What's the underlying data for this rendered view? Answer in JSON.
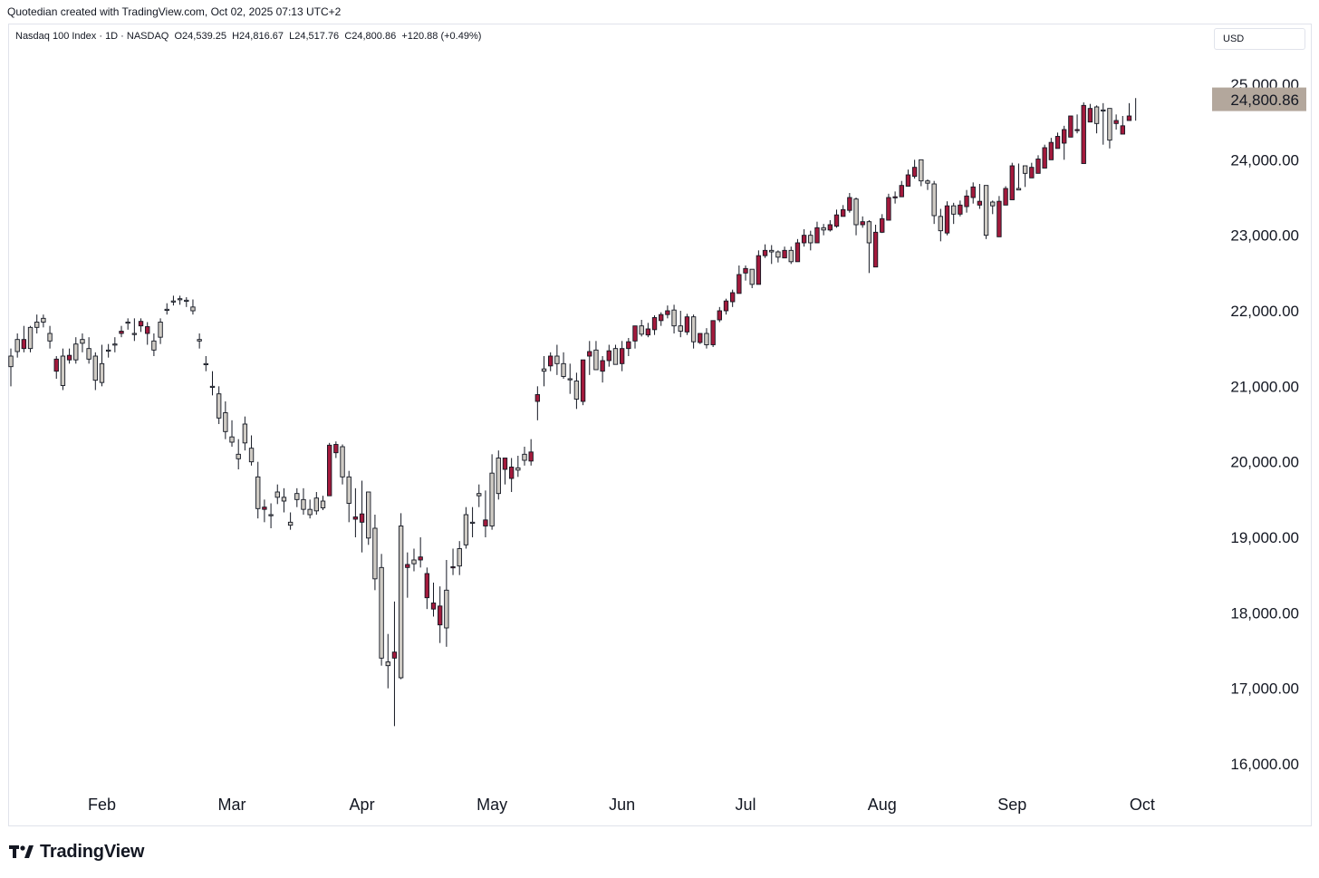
{
  "header": {
    "caption": "Quotedian created with TradingView.com, Oct 02, 2025 07:13 UTC+2"
  },
  "legend": {
    "symbol": "Nasdaq 100 Index · 1D · NASDAQ",
    "open": "O24,539.25",
    "high": "H24,816.67",
    "low": "L24,517.76",
    "close": "C24,800.86",
    "change": "+120.88 (+0.49%)"
  },
  "currency": "USD",
  "last_price_label": "24,800.86",
  "branding": {
    "logo_text": "TradingView"
  },
  "colors": {
    "up_fill": "#cfcbc4",
    "down_fill": "#a31a3c",
    "price_tag": "#b3a79c",
    "wick": "#131722"
  },
  "chart_data": {
    "type": "candlestick",
    "title": "Nasdaq 100 Index · 1D · NASDAQ",
    "xlabel": "",
    "ylabel": "",
    "ylim": [
      15800,
      25200
    ],
    "y_ticks": [
      {
        "value": 16000,
        "label": "16,000.00"
      },
      {
        "value": 17000,
        "label": "17,000.00"
      },
      {
        "value": 18000,
        "label": "18,000.00"
      },
      {
        "value": 19000,
        "label": "19,000.00"
      },
      {
        "value": 20000,
        "label": "20,000.00"
      },
      {
        "value": 21000,
        "label": "21,000.00"
      },
      {
        "value": 22000,
        "label": "22,000.00"
      },
      {
        "value": 23000,
        "label": "23,000.00"
      },
      {
        "value": 24000,
        "label": "24,000.00"
      },
      {
        "value": 25000,
        "label": "25,000.00"
      }
    ],
    "x_ticks": [
      "Feb",
      "Mar",
      "Apr",
      "May",
      "Jun",
      "Jul",
      "Aug",
      "Sep",
      "Oct"
    ],
    "x_tick_bar_index": [
      14,
      34,
      54,
      74,
      94,
      113,
      134,
      154,
      174
    ],
    "last_price": 24800.86,
    "closes": [
      21400,
      21620,
      21500,
      21780,
      21850,
      21900,
      21700,
      21200,
      21400,
      21350,
      21560,
      21620,
      21500,
      21400,
      21300,
      21480,
      21560,
      21700,
      21850,
      21700,
      21800,
      21700,
      21600,
      21850,
      22020,
      22130,
      22160,
      22140,
      22050,
      21620,
      21300,
      21000,
      20900,
      20650,
      20330,
      20100,
      20500,
      20180,
      19800,
      19370,
      19300,
      19600,
      19530,
      19200,
      19580,
      19500,
      19370,
      19520,
      19480,
      19550,
      20120,
      20200,
      19800,
      19240,
      19200,
      19600,
      19120,
      18600,
      17350,
      17400,
      19150,
      18600,
      18700,
      18700,
      18200,
      18050,
      17840,
      18300,
      18600,
      18850,
      19300,
      19200,
      19580,
      19150,
      19850,
      20050,
      19900,
      19780,
      19920,
      20100,
      20010,
      20800,
      21230,
      21270,
      21400,
      21300,
      21100,
      21070,
      20800,
      21400,
      21480,
      21200,
      21340,
      21500,
      21300,
      21500,
      21600,
      21800,
      21680,
      21750,
      21870,
      21950,
      22010,
      21800,
      21720,
      21920,
      21580,
      21700,
      21550,
      21880,
      22000,
      22120,
      22230,
      22500,
      22550,
      22350,
      22730,
      22800,
      22780,
      22700,
      22800,
      22650,
      22900,
      23000,
      22900,
      23100,
      23070,
      23120,
      23250,
      23330,
      23480,
      23140,
      23180,
      22580,
      23040,
      23200,
      23500,
      23510,
      23650,
      23780,
      24000,
      23720,
      23680,
      23250,
      23030,
      23390,
      23280,
      23380,
      23500,
      23400,
      23660,
      23440,
      22980,
      23400,
      23470,
      23620,
      23920,
      23760,
      23820,
      23890,
      24000,
      24150,
      24220,
      24300,
      24390,
      23950,
      24500,
      24700,
      24660,
      24680,
      24480,
      24340,
      24520,
      24560,
      24710,
      24800
    ],
    "opens": [
      21260,
      21460,
      21620,
      21500,
      21780,
      21850,
      21600,
      21360,
      21010,
      21410,
      21350,
      21570,
      21360,
      21080,
      21050,
      21480,
      21550,
      21730,
      21850,
      21700,
      21860,
      21790,
      21480,
      21650,
      22020,
      22130,
      22150,
      22140,
      22000,
      21600,
      21290,
      21000,
      20580,
      20400,
      20260,
      20040,
      20250,
      20000,
      19380,
      19400,
      19300,
      19530,
      19480,
      19160,
      19500,
      19370,
      19300,
      19350,
      19390,
      20220,
      20230,
      19800,
      19450,
      19270,
      19310,
      18990,
      18450,
      17400,
      17300,
      17480,
      17140,
      18640,
      18650,
      18740,
      18520,
      18130,
      18090,
      17800,
      18610,
      18620,
      18900,
      19200,
      19550,
      19230,
      19150,
      19580,
      20050,
      19930,
      19890,
      20020,
      20130,
      20890,
      21200,
      21400,
      21300,
      21130,
      21090,
      20830,
      21350,
      21460,
      21220,
      21340,
      21470,
      21290,
      21500,
      21590,
      21800,
      21690,
      21760,
      21910,
      21950,
      22000,
      21800,
      21730,
      21920,
      21590,
      21700,
      21550,
      21870,
      22000,
      22130,
      22240,
      22480,
      22560,
      22350,
      22730,
      22800,
      22780,
      22710,
      22800,
      22650,
      22900,
      23000,
      22900,
      23100,
      23070,
      23140,
      23270,
      23340,
      23500,
      23140,
      23180,
      22900,
      23040,
      23220,
      23500,
      23510,
      23660,
      23800,
      23900,
      23720,
      23690,
      23260,
      23060,
      23390,
      23280,
      23400,
      23520,
      23640,
      23450,
      23000,
      23390,
      23450,
      23620,
      23920,
      23600,
      23820,
      23900,
      24010,
      24160,
      24230,
      24310,
      24400,
      24580,
      24400,
      24720,
      24680,
      24480,
      24650,
      24260,
      24520,
      24450,
      24580
    ],
    "highs": [
      21500,
      21700,
      21800,
      21800,
      21950,
      21950,
      21800,
      21400,
      21500,
      21500,
      21650,
      21700,
      21650,
      21450,
      21550,
      21560,
      21650,
      21800,
      21900,
      21900,
      21900,
      21850,
      21700,
      21900,
      22100,
      22200,
      22200,
      22180,
      22150,
      21700,
      21400,
      21200,
      21000,
      20800,
      20550,
      20300,
      20600,
      20350,
      20000,
      19500,
      19450,
      19700,
      19650,
      19330,
      19650,
      19650,
      19500,
      19600,
      19550,
      20250,
      20270,
      20230,
      19880,
      19650,
      19750,
      19600,
      19300,
      18780,
      17720,
      18150,
      19320,
      18800,
      18850,
      19000,
      18600,
      18400,
      18350,
      18700,
      18850,
      18950,
      19400,
      19400,
      19700,
      19620,
      20100,
      20150,
      20050,
      20050,
      20080,
      20200,
      20300,
      21000,
      21400,
      21450,
      21550,
      21450,
      21300,
      21180,
      21080,
      21600,
      21600,
      21400,
      21550,
      21550,
      21600,
      21640,
      21760,
      21880,
      21840,
      21940,
      21980,
      22070,
      22080,
      22000,
      21960,
      21950,
      21680,
      21770,
      21800,
      22050,
      22160,
      22280,
      22600,
      22600,
      22500,
      22800,
      22880,
      22870,
      22800,
      22850,
      22850,
      22950,
      23080,
      23060,
      23180,
      23150,
      23200,
      23340,
      23400,
      23560,
      23500,
      23250,
      23200,
      23140,
      23280,
      23550,
      23580,
      23720,
      23870,
      24000,
      23920,
      23740,
      23720,
      23350,
      23450,
      23430,
      23460,
      23600,
      23700,
      23680,
      23500,
      23460,
      23520,
      23650,
      23960,
      23950,
      23890,
      23960,
      24060,
      24200,
      24290,
      24360,
      24450,
      24500,
      24600,
      24760,
      24740,
      24720,
      24750,
      24560,
      24600,
      24580,
      24750,
      24817
    ],
    "lows": [
      21000,
      21380,
      21450,
      21450,
      21700,
      21780,
      21500,
      21100,
      20950,
      21300,
      21300,
      21450,
      21300,
      20950,
      21000,
      21380,
      21450,
      21650,
      21750,
      21600,
      21720,
      21550,
      21400,
      21560,
      21950,
      22070,
      22080,
      22050,
      21950,
      21500,
      21200,
      20880,
      20500,
      20300,
      20200,
      19900,
      20150,
      19950,
      19250,
      19200,
      19120,
      19440,
      19330,
      19100,
      19400,
      19300,
      19250,
      19300,
      19360,
      20000,
      20050,
      19700,
      19200,
      19000,
      18800,
      18900,
      18300,
      17300,
      17000,
      16500,
      17120,
      18200,
      18550,
      18600,
      18050,
      17950,
      17600,
      17550,
      18500,
      18500,
      18850,
      19000,
      19400,
      19000,
      19100,
      19500,
      19700,
      19600,
      19800,
      19950,
      19950,
      20550,
      21000,
      21200,
      21150,
      21100,
      20900,
      20700,
      20750,
      21150,
      21350,
      21050,
      21260,
      21400,
      21200,
      21400,
      21500,
      21660,
      21650,
      21680,
      21800,
      21900,
      21700,
      21650,
      21680,
      21500,
      21560,
      21500,
      21520,
      21850,
      21950,
      22050,
      22400,
      22400,
      22300,
      22650,
      22700,
      22620,
      22640,
      22700,
      22620,
      22750,
      22850,
      22800,
      22950,
      23000,
      23050,
      23100,
      23250,
      23300,
      23000,
      23100,
      22500,
      22950,
      23030,
      23420,
      23420,
      23580,
      23650,
      23750,
      23650,
      23600,
      23150,
      22920,
      23000,
      23150,
      23250,
      23300,
      23420,
      23350,
      22950,
      23280,
      23300,
      23500,
      23800,
      23600,
      23640,
      23780,
      23950,
      24050,
      24160,
      24250,
      24000,
      24300,
      24350,
      24600,
      24560,
      24350,
      24200,
      24150,
      24400,
      24400,
      24530,
      24518
    ]
  }
}
